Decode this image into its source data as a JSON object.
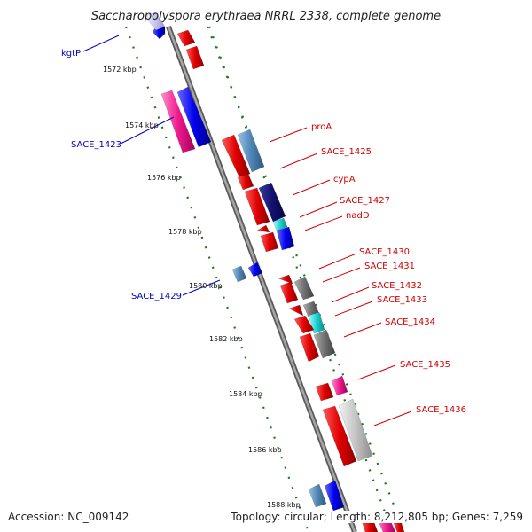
{
  "title": "Saccharopolyspora erythraea NRRL 2338, complete genome",
  "footer": {
    "accession": "Accession: NC_009142",
    "stats": "Topology: circular; Length: 8,212,805 bp; Genes: 7,259"
  },
  "ticks": [
    "1572 kbp",
    "1574 kbp",
    "1576 kbp",
    "1578 kbp",
    "1580 kbp",
    "1582 kbp",
    "1584 kbp",
    "1586 kbp",
    "1588 kbp"
  ],
  "labels_reverse": [
    "kgtP",
    "SACE_1423",
    "SACE_1429"
  ],
  "labels_forward": [
    "proA",
    "SACE_1425",
    "cypA",
    "SACE_1427",
    "nadD",
    "SACE_1430",
    "SACE_1431",
    "SACE_1432",
    "SACE_1433",
    "SACE_1434",
    "SACE_1435",
    "SACE_1436"
  ],
  "colors": {
    "label_forward": "#d40000",
    "label_reverse": "#0000c8",
    "backbone": "#8a8a8a",
    "ring": "#1a7a1a"
  }
}
